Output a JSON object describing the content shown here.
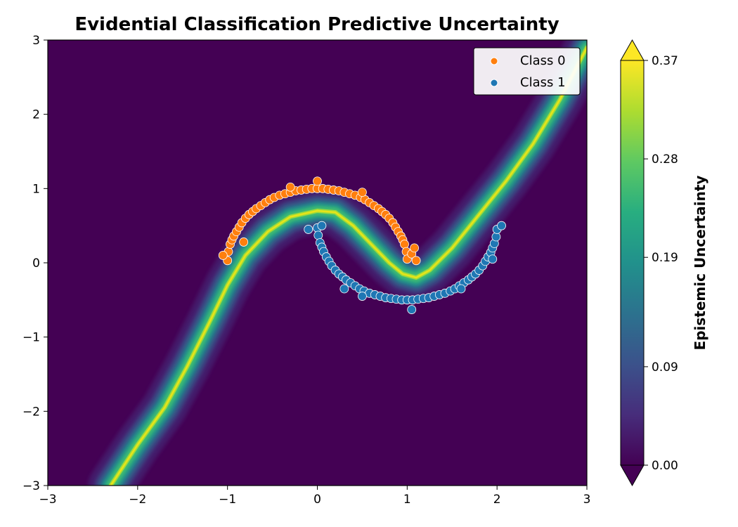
{
  "chart_data": {
    "type": "contour+scatter",
    "title": "Evidential Classification Predictive Uncertainty",
    "xlabel": "",
    "ylabel": "",
    "xlim": [
      -3,
      3
    ],
    "ylim": [
      -3,
      3
    ],
    "x_ticks": [
      "−3",
      "−2",
      "−1",
      "0",
      "1",
      "2",
      "3"
    ],
    "y_ticks": [
      "−3",
      "−2",
      "−1",
      "0",
      "1",
      "2",
      "3"
    ],
    "grid": false,
    "legend_position": "top-right",
    "colormap": "viridis",
    "colorbar": {
      "label": "Epistemic Uncertainty",
      "min": 0.0,
      "max": 0.37,
      "ticks": [
        "0.00",
        "0.09",
        "0.19",
        "0.28",
        "0.37"
      ],
      "tick_values": [
        0.0,
        0.09,
        0.19,
        0.28,
        0.37
      ],
      "extend": "both"
    },
    "decision_boundary": [
      [
        -2.3,
        -3.0
      ],
      [
        -2.0,
        -2.45
      ],
      [
        -1.7,
        -1.95
      ],
      [
        -1.45,
        -1.4
      ],
      [
        -1.2,
        -0.8
      ],
      [
        -1.0,
        -0.3
      ],
      [
        -0.8,
        0.1
      ],
      [
        -0.55,
        0.42
      ],
      [
        -0.3,
        0.62
      ],
      [
        0.0,
        0.7
      ],
      [
        0.2,
        0.68
      ],
      [
        0.4,
        0.5
      ],
      [
        0.6,
        0.25
      ],
      [
        0.8,
        0.0
      ],
      [
        0.95,
        -0.15
      ],
      [
        1.1,
        -0.2
      ],
      [
        1.25,
        -0.1
      ],
      [
        1.5,
        0.2
      ],
      [
        1.8,
        0.65
      ],
      [
        2.1,
        1.1
      ],
      [
        2.4,
        1.6
      ],
      [
        2.7,
        2.2
      ],
      [
        3.0,
        2.9
      ]
    ],
    "series": [
      {
        "name": "Class 0",
        "color": "#ff7f0e",
        "moon": "upper",
        "center": [
          0.0,
          0.0
        ],
        "radius": 1.0,
        "angle_range_deg": [
          0,
          180
        ],
        "points": [
          [
            -1.0,
            0.03
          ],
          [
            -0.99,
            0.15
          ],
          [
            -0.97,
            0.25
          ],
          [
            -0.95,
            0.31
          ],
          [
            -0.93,
            0.36
          ],
          [
            -0.9,
            0.42
          ],
          [
            -0.87,
            0.48
          ],
          [
            -0.84,
            0.54
          ],
          [
            -0.8,
            0.6
          ],
          [
            -0.76,
            0.65
          ],
          [
            -0.72,
            0.69
          ],
          [
            -0.68,
            0.73
          ],
          [
            -0.63,
            0.77
          ],
          [
            -0.58,
            0.81
          ],
          [
            -0.53,
            0.85
          ],
          [
            -0.48,
            0.88
          ],
          [
            -0.42,
            0.91
          ],
          [
            -0.36,
            0.93
          ],
          [
            -0.3,
            0.95
          ],
          [
            -0.24,
            0.97
          ],
          [
            -0.18,
            0.98
          ],
          [
            -0.12,
            0.99
          ],
          [
            -0.06,
            1.0
          ],
          [
            0.0,
            1.0
          ],
          [
            0.06,
            1.0
          ],
          [
            0.12,
            0.99
          ],
          [
            0.18,
            0.98
          ],
          [
            0.24,
            0.97
          ],
          [
            0.3,
            0.95
          ],
          [
            0.36,
            0.93
          ],
          [
            0.42,
            0.91
          ],
          [
            0.48,
            0.88
          ],
          [
            0.53,
            0.85
          ],
          [
            0.58,
            0.81
          ],
          [
            0.63,
            0.77
          ],
          [
            0.68,
            0.73
          ],
          [
            0.72,
            0.69
          ],
          [
            0.76,
            0.65
          ],
          [
            0.8,
            0.6
          ],
          [
            0.84,
            0.54
          ],
          [
            0.87,
            0.48
          ],
          [
            0.9,
            0.42
          ],
          [
            0.93,
            0.36
          ],
          [
            0.95,
            0.31
          ],
          [
            0.97,
            0.25
          ],
          [
            0.99,
            0.15
          ],
          [
            1.0,
            0.05
          ],
          [
            1.05,
            0.12
          ],
          [
            1.1,
            0.03
          ],
          [
            -1.05,
            0.1
          ],
          [
            -0.82,
            0.28
          ],
          [
            0.5,
            0.95
          ],
          [
            0.0,
            1.1
          ],
          [
            -0.3,
            1.02
          ],
          [
            1.08,
            0.2
          ]
        ]
      },
      {
        "name": "Class 1",
        "color": "#1f77b4",
        "moon": "lower",
        "center": [
          1.0,
          0.5
        ],
        "radius": 1.0,
        "angle_range_deg": [
          180,
          360
        ],
        "points": [
          [
            0.0,
            0.47
          ],
          [
            0.01,
            0.37
          ],
          [
            0.03,
            0.27
          ],
          [
            0.05,
            0.21
          ],
          [
            0.07,
            0.15
          ],
          [
            0.1,
            0.08
          ],
          [
            0.13,
            0.02
          ],
          [
            0.16,
            -0.04
          ],
          [
            0.2,
            -0.1
          ],
          [
            0.24,
            -0.15
          ],
          [
            0.28,
            -0.19
          ],
          [
            0.32,
            -0.23
          ],
          [
            0.37,
            -0.27
          ],
          [
            0.42,
            -0.31
          ],
          [
            0.47,
            -0.35
          ],
          [
            0.52,
            -0.38
          ],
          [
            0.58,
            -0.41
          ],
          [
            0.64,
            -0.43
          ],
          [
            0.7,
            -0.45
          ],
          [
            0.76,
            -0.47
          ],
          [
            0.82,
            -0.48
          ],
          [
            0.88,
            -0.49
          ],
          [
            0.94,
            -0.5
          ],
          [
            1.0,
            -0.5
          ],
          [
            1.06,
            -0.5
          ],
          [
            1.12,
            -0.49
          ],
          [
            1.18,
            -0.48
          ],
          [
            1.24,
            -0.47
          ],
          [
            1.3,
            -0.45
          ],
          [
            1.36,
            -0.43
          ],
          [
            1.42,
            -0.41
          ],
          [
            1.48,
            -0.38
          ],
          [
            1.53,
            -0.35
          ],
          [
            1.58,
            -0.31
          ],
          [
            1.63,
            -0.27
          ],
          [
            1.68,
            -0.23
          ],
          [
            1.72,
            -0.19
          ],
          [
            1.76,
            -0.15
          ],
          [
            1.8,
            -0.1
          ],
          [
            1.84,
            -0.04
          ],
          [
            1.87,
            0.02
          ],
          [
            1.9,
            0.08
          ],
          [
            1.93,
            0.14
          ],
          [
            1.95,
            0.2
          ],
          [
            1.97,
            0.26
          ],
          [
            1.99,
            0.35
          ],
          [
            2.0,
            0.45
          ],
          [
            2.05,
            0.5
          ],
          [
            -0.1,
            0.45
          ],
          [
            1.05,
            -0.63
          ],
          [
            0.5,
            -0.45
          ],
          [
            0.3,
            -0.35
          ],
          [
            1.6,
            -0.35
          ],
          [
            1.95,
            0.05
          ],
          [
            0.05,
            0.5
          ]
        ]
      }
    ]
  }
}
